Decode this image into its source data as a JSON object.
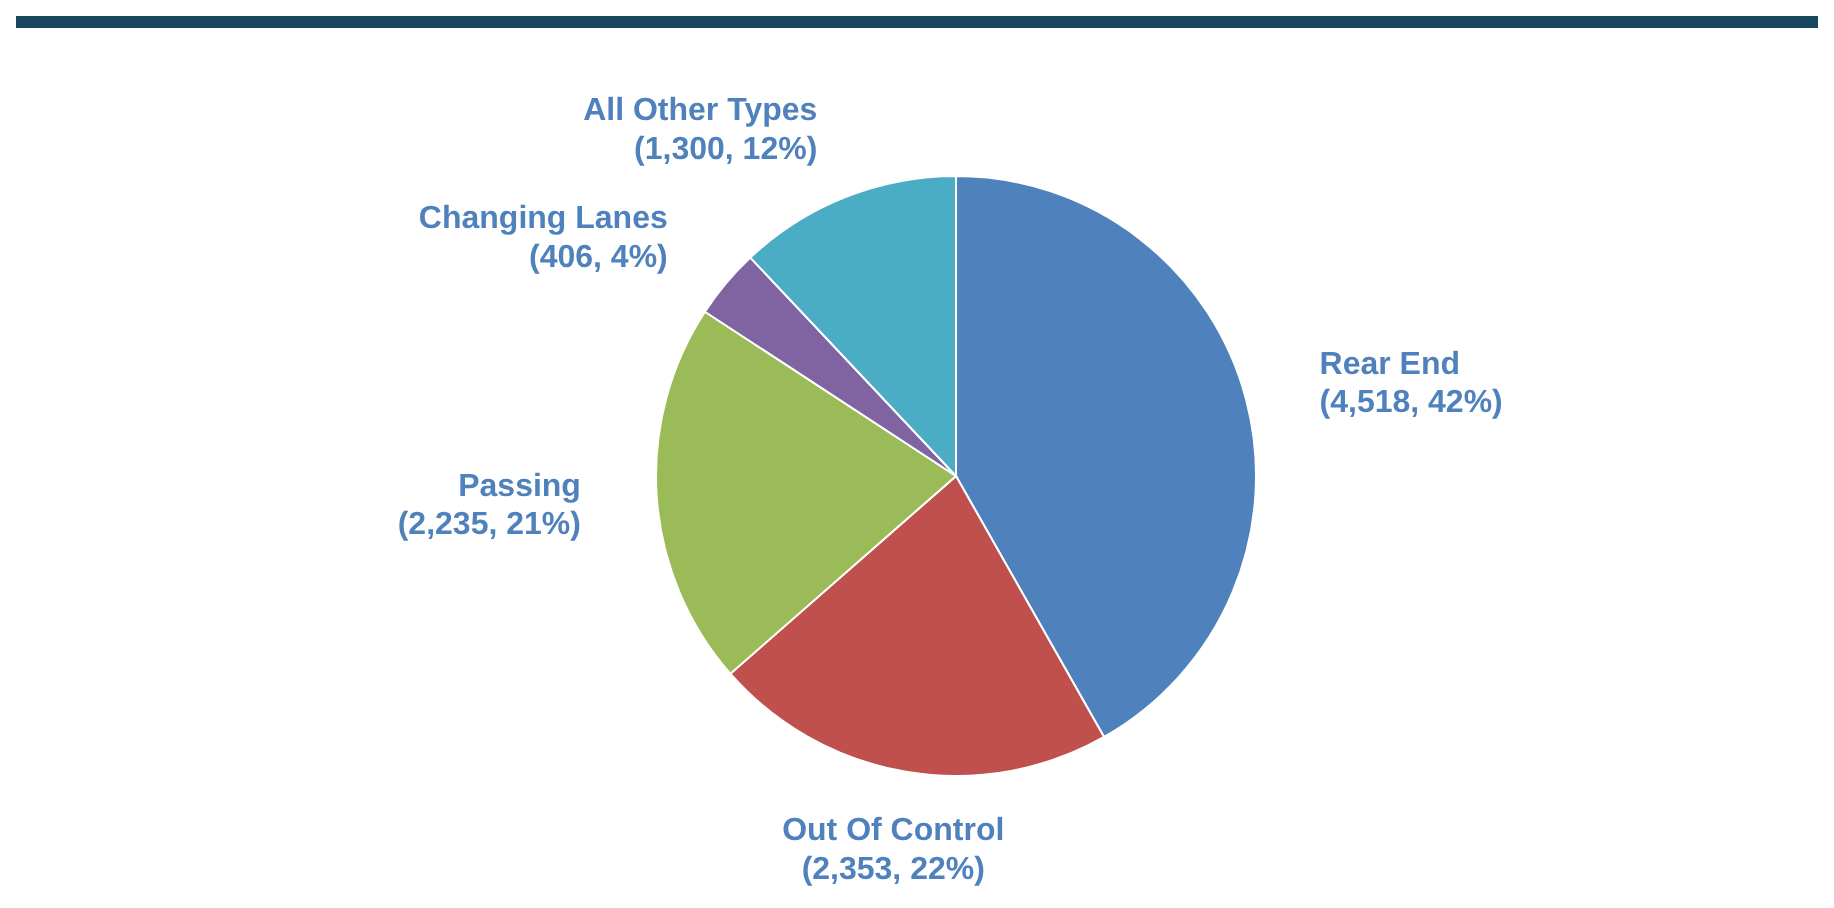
{
  "chart_data": {
    "type": "pie",
    "categories": [
      "Rear End",
      "Out Of Control",
      "Passing",
      "Changing Lanes",
      "All Other Types"
    ],
    "values": [
      4518,
      2353,
      2235,
      406,
      1300
    ],
    "colors": [
      "#4f81bd",
      "#c0504d",
      "#9bbb59",
      "#8064a2",
      "#4bacc6"
    ],
    "value_labels": [
      "(4,518, 42%)",
      "(2,353, 22%)",
      "(2,235, 21%)",
      "(406, 4%)",
      "(1,300, 12%)"
    ],
    "legend": false
  }
}
